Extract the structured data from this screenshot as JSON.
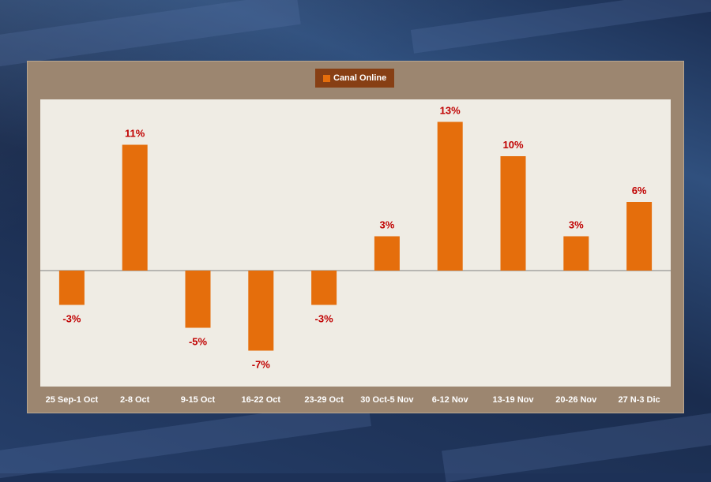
{
  "chart_data": {
    "type": "bar",
    "categories": [
      "25 Sep-1 Oct",
      "2-8 Oct",
      "9-15 Oct",
      "16-22 Oct",
      "23-29 Oct",
      "30 Oct-5 Nov",
      "6-12 Nov",
      "13-19 Nov",
      "20-26 Nov",
      "27 N-3 Dic"
    ],
    "series": [
      {
        "name": "Canal Online",
        "values": [
          -3,
          11,
          -5,
          -7,
          -3,
          3,
          13,
          10,
          3,
          6
        ]
      }
    ],
    "data_labels": [
      "-3%",
      "11%",
      "-5%",
      "-7%",
      "-3%",
      "3%",
      "13%",
      "10%",
      "3%",
      "6%"
    ],
    "ylim": [
      -10,
      15
    ],
    "grid": false,
    "legend_position": "top-center",
    "colors": {
      "bar": "#e56e0c",
      "label": "#c00000",
      "axis": "#7f7f7f",
      "panel": "#9c8670",
      "plot_bg": "#efece4",
      "legend_bg": "#873f14",
      "tick_text": "#ffffff"
    }
  }
}
